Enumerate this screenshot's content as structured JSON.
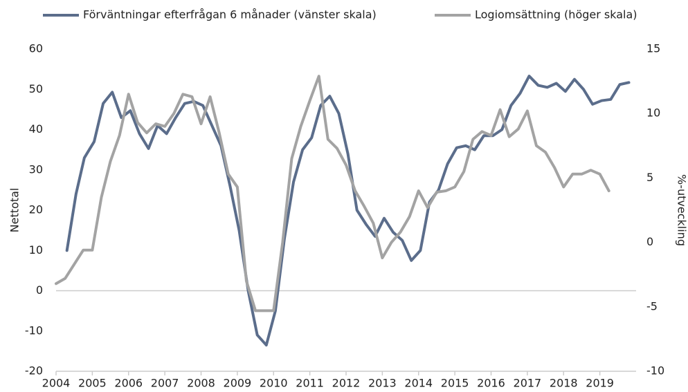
{
  "chart_data": {
    "type": "line",
    "y_label": "Nettotal",
    "y2_label": "%-utveckling",
    "xlim": [
      2004,
      2020
    ],
    "xticks": [
      2004,
      2005,
      2006,
      2007,
      2008,
      2009,
      2010,
      2011,
      2012,
      2013,
      2014,
      2015,
      2016,
      2017,
      2018,
      2019
    ],
    "ylim": [
      -20,
      60
    ],
    "yticks": [
      -20,
      -10,
      0,
      10,
      20,
      30,
      40,
      50,
      60
    ],
    "y2lim": [
      -10,
      15
    ],
    "y2ticks": [
      -10,
      -5,
      0,
      5,
      10,
      15
    ],
    "legend": "top",
    "series": [
      {
        "name": "Förväntningar efterfrågan 6 månader (vänster skala)",
        "color": "#5b6d8b",
        "x": [
          2004.3,
          2004.55,
          2004.78,
          2005.05,
          2005.3,
          2005.55,
          2005.8,
          2006.05,
          2006.3,
          2006.55,
          2006.8,
          2007.05,
          2007.3,
          2007.55,
          2007.8,
          2008.05,
          2008.3,
          2008.55,
          2008.8,
          2009.05,
          2009.3,
          2009.55,
          2009.8,
          2010.05,
          2010.3,
          2010.55,
          2010.8,
          2011.05,
          2011.3,
          2011.55,
          2011.8,
          2012.05,
          2012.3,
          2012.55,
          2012.8,
          2013.05,
          2013.3,
          2013.55,
          2013.8,
          2014.05,
          2014.3,
          2014.55,
          2014.8,
          2015.05,
          2015.3,
          2015.55,
          2015.8,
          2016.05,
          2016.3,
          2016.55,
          2016.8,
          2017.05,
          2017.3,
          2017.55,
          2017.8,
          2018.05,
          2018.3,
          2018.55,
          2018.8,
          2019.05,
          2019.3,
          2019.55,
          2019.8
        ],
        "values": [
          10,
          24,
          33,
          37,
          46.5,
          49.3,
          43,
          44.7,
          39,
          35.3,
          41,
          39,
          43,
          46.5,
          47,
          46,
          41,
          36,
          26,
          15,
          0,
          -11,
          -13.5,
          -5,
          13,
          27,
          35,
          38,
          46,
          48.3,
          44,
          34,
          20,
          16.5,
          13.5,
          18,
          14.5,
          12.5,
          7.5,
          10,
          22,
          25,
          31.5,
          35.5,
          36,
          35,
          38.5,
          38.5,
          40,
          46,
          49,
          53.3,
          51,
          50.5,
          51.5,
          49.5,
          52.5,
          50,
          46.3,
          47.2,
          47.5,
          51.2,
          51.7
        ]
      },
      {
        "name": "Logiomsättning (höger skala)",
        "color": "#a3a3a3",
        "axis": "y2",
        "x": [
          2004.0,
          2004.25,
          2004.5,
          2004.75,
          2005.0,
          2005.25,
          2005.5,
          2005.75,
          2006.0,
          2006.25,
          2006.5,
          2006.75,
          2007.0,
          2007.25,
          2007.5,
          2007.75,
          2008.0,
          2008.25,
          2008.5,
          2008.75,
          2009.0,
          2009.25,
          2009.5,
          2009.75,
          2010.0,
          2010.25,
          2010.5,
          2010.75,
          2011.0,
          2011.25,
          2011.5,
          2011.75,
          2012.0,
          2012.25,
          2012.5,
          2012.75,
          2013.0,
          2013.25,
          2013.5,
          2013.75,
          2014.0,
          2014.25,
          2014.5,
          2014.75,
          2015.0,
          2015.25,
          2015.5,
          2015.75,
          2016.0,
          2016.25,
          2016.5,
          2016.75,
          2017.0,
          2017.25,
          2017.5,
          2017.75,
          2018.0,
          2018.25,
          2018.5,
          2018.75,
          2019.0,
          2019.25
        ],
        "values": [
          -3.2,
          -2.8,
          -1.7,
          -0.6,
          -0.6,
          3.5,
          6.3,
          8.3,
          11.5,
          9.3,
          8.5,
          9.2,
          9.0,
          10.0,
          11.5,
          11.3,
          9.2,
          11.3,
          8.5,
          5.3,
          4.3,
          -3.0,
          -5.3,
          -5.3,
          -5.3,
          0,
          6.5,
          9.0,
          11.0,
          12.9,
          8.0,
          7.3,
          6.0,
          4.0,
          2.8,
          1.5,
          -1.2,
          0.0,
          0.8,
          2.0,
          4.0,
          2.7,
          3.9,
          4.0,
          4.3,
          5.5,
          8.0,
          8.6,
          8.3,
          10.3,
          8.2,
          8.8,
          10.2,
          7.5,
          7.0,
          5.8,
          4.3,
          5.3,
          5.3,
          5.6,
          5.3,
          4.0
        ]
      }
    ]
  }
}
